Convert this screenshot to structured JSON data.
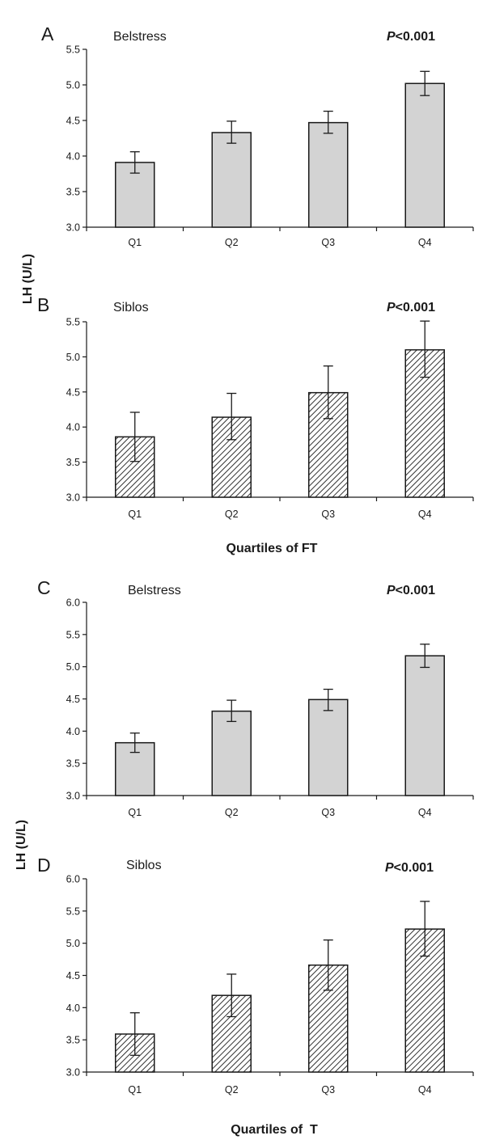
{
  "shared": {
    "y_label_top": "LH (U/L)",
    "y_label_bottom": "LH (U/L)",
    "x_label_ft": "Quartiles of FT",
    "x_label_t": "Quartiles of  T"
  },
  "colors": {
    "bar_fill": "#d3d3d3",
    "ink": "#1a1a1a"
  },
  "chart_data": [
    {
      "type": "bar",
      "panel": "A",
      "title": "Belstress",
      "pvalue": {
        "prefix": "P",
        "rest": "<0.001"
      },
      "categories": [
        "Q1",
        "Q2",
        "Q3",
        "Q4"
      ],
      "values": [
        3.91,
        4.33,
        4.47,
        5.02
      ],
      "error_low": [
        3.76,
        4.18,
        4.32,
        4.85
      ],
      "error_high": [
        4.06,
        4.49,
        4.63,
        5.19
      ],
      "ylim": [
        3.0,
        5.5
      ],
      "yticks": [
        "3.0",
        "3.5",
        "4.0",
        "4.5",
        "5.0",
        "5.5"
      ],
      "fill": "solid"
    },
    {
      "type": "bar",
      "panel": "B",
      "title": "Siblos",
      "pvalue": {
        "prefix": "P",
        "rest": "<0.001"
      },
      "categories": [
        "Q1",
        "Q2",
        "Q3",
        "Q4"
      ],
      "values": [
        3.86,
        4.14,
        4.49,
        5.1
      ],
      "error_low": [
        3.51,
        3.82,
        4.12,
        4.71
      ],
      "error_high": [
        4.21,
        4.48,
        4.87,
        5.51
      ],
      "ylim": [
        3.0,
        5.5
      ],
      "yticks": [
        "3.0",
        "3.5",
        "4.0",
        "4.5",
        "5.0",
        "5.5"
      ],
      "fill": "hatch"
    },
    {
      "type": "bar",
      "panel": "C",
      "title": "Belstress",
      "pvalue": {
        "prefix": "P",
        "rest": "<0.001"
      },
      "categories": [
        "Q1",
        "Q2",
        "Q3",
        "Q4"
      ],
      "values": [
        3.82,
        4.31,
        4.49,
        5.17
      ],
      "error_low": [
        3.67,
        4.15,
        4.32,
        4.99
      ],
      "error_high": [
        3.97,
        4.48,
        4.65,
        5.35
      ],
      "ylim": [
        3.0,
        6.0
      ],
      "yticks": [
        "3.0",
        "3.5",
        "4.0",
        "4.5",
        "5.0",
        "5.5",
        "6.0"
      ],
      "fill": "solid"
    },
    {
      "type": "bar",
      "panel": "D",
      "title": "Siblos",
      "pvalue": {
        "prefix": "P",
        "rest": "<0.001"
      },
      "categories": [
        "Q1",
        "Q2",
        "Q3",
        "Q4"
      ],
      "values": [
        3.59,
        4.19,
        4.66,
        5.22
      ],
      "error_low": [
        3.26,
        3.86,
        4.27,
        4.8
      ],
      "error_high": [
        3.92,
        4.52,
        5.05,
        5.65
      ],
      "ylim": [
        3.0,
        6.0
      ],
      "yticks": [
        "3.0",
        "3.5",
        "4.0",
        "4.5",
        "5.0",
        "5.5",
        "6.0"
      ],
      "fill": "hatch"
    }
  ]
}
